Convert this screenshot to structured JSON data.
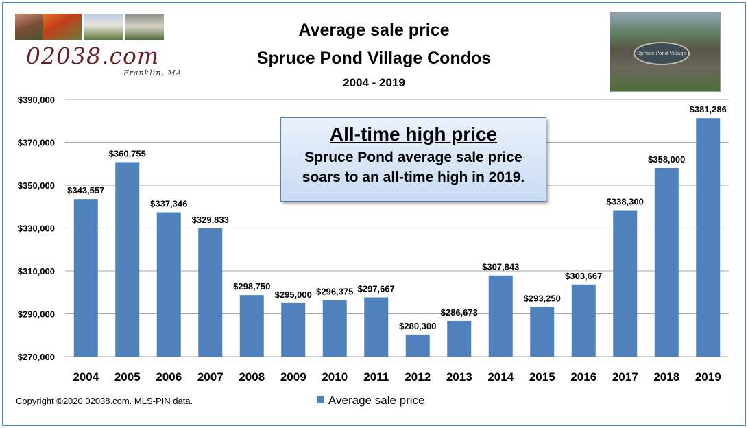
{
  "header": {
    "title_line1": "Average sale price",
    "title_line2": "Spruce Pond Village Condos",
    "subtitle": "2004 - 2019"
  },
  "logo": {
    "site": "02038.com",
    "location": "Franklin, MA"
  },
  "sign_photo": {
    "text": "Spruce Pond Village"
  },
  "annotation": {
    "heading": "All-time high price",
    "body_line1": "Spruce Pond average sale price",
    "body_line2": "soars to an all-time high in 2019."
  },
  "footer": {
    "copyright": "Copyright ©2020 02038.com.  MLS-PIN data.",
    "legend_label": "Average sale price"
  },
  "colors": {
    "bar": "#4f81bd",
    "gridline": "#a6a6a6",
    "frame": "#4f81bd"
  },
  "chart_data": {
    "type": "bar",
    "title": "Average sale price Spruce Pond Village Condos",
    "subtitle": "2004 - 2019",
    "categories": [
      "2004",
      "2005",
      "2006",
      "2007",
      "2008",
      "2009",
      "2010",
      "2011",
      "2012",
      "2013",
      "2014",
      "2015",
      "2016",
      "2017",
      "2018",
      "2019"
    ],
    "series": [
      {
        "name": "Average sale price",
        "values": [
          343557,
          360755,
          337346,
          329833,
          298750,
          295000,
          296375,
          297667,
          280300,
          286673,
          307843,
          293250,
          303667,
          338300,
          358000,
          381286
        ],
        "labels": [
          "$343,557",
          "$360,755",
          "$337,346",
          "$329,833",
          "$298,750",
          "$295,000",
          "$296,375",
          "$297,667",
          "$280,300",
          "$286,673",
          "$307,843",
          "$293,250",
          "$303,667",
          "$338,300",
          "$358,000",
          "$381,286"
        ]
      }
    ],
    "ylim": [
      270000,
      390000
    ],
    "yticks": [
      270000,
      290000,
      310000,
      330000,
      350000,
      370000,
      390000
    ],
    "ytick_labels": [
      "$270,000",
      "$290,000",
      "$310,000",
      "$330,000",
      "$350,000",
      "$370,000",
      "$390,000"
    ],
    "grid": true,
    "legend_position": "bottom",
    "xlabel": "",
    "ylabel": ""
  }
}
